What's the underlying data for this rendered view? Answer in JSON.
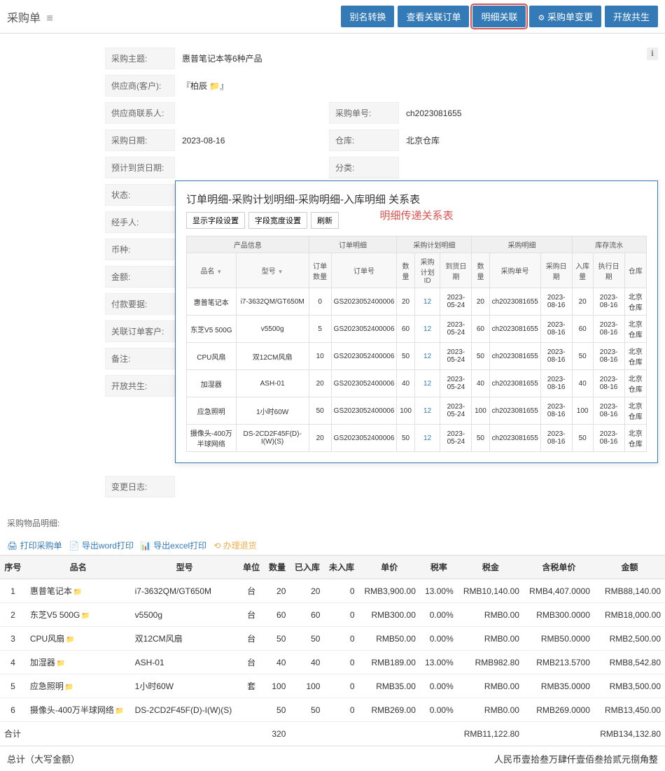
{
  "header": {
    "title": "采购单",
    "buttons": [
      "别名转换",
      "查看关联订单",
      "明细关联",
      "采购单变更",
      "开放共生"
    ],
    "highlighted_index": 2
  },
  "form": {
    "subject_label": "采购主题:",
    "subject_value": "惠普笔记本等6种产品",
    "supplier_label": "供应商(客户):",
    "supplier_value": "『柏辰 📁』",
    "contact_label": "供应商联系人:",
    "po_no_label": "采购单号:",
    "po_no_value": "ch2023081655",
    "date_label": "采购日期:",
    "date_value": "2023-08-16",
    "warehouse_label": "仓库:",
    "warehouse_value": "北京仓库",
    "expect_label": "预计到货日期:",
    "category_label": "分类:",
    "status_label": "状态:",
    "handler_label": "经手人:",
    "currency_label": "币种:",
    "amount_label": "金额:",
    "payreq_label": "付款要据:",
    "relcust_label": "关联订单客户:",
    "remark_label": "备注:",
    "open_label": "开放共生:",
    "changelog_label": "变更日志:"
  },
  "overlay": {
    "title": "订单明细-采购计划明细-采购明细-入库明细 关系表",
    "red_title": "明细传递关系表",
    "btns": [
      "显示字段设置",
      "字段宽度设置",
      "刷新"
    ],
    "group_headers": [
      "产品信息",
      "订单明细",
      "采购计划明细",
      "采购明细",
      "库存流水"
    ],
    "cols": [
      "品名",
      "型号",
      "订单数量",
      "订单号",
      "数量",
      "采购计划ID",
      "到货日期",
      "数量",
      "采购单号",
      "采购日期",
      "入库量",
      "执行日期",
      "仓库"
    ],
    "rows": [
      [
        "惠普笔记本",
        "i7-3632QM/GT650M",
        "0",
        "GS2023052400006",
        "20",
        "12",
        "2023-05-24",
        "20",
        "ch2023081655",
        "2023-08-16",
        "20",
        "2023-08-16",
        "北京仓库"
      ],
      [
        "东芝V5 500G",
        "v5500g",
        "5",
        "GS2023052400006",
        "60",
        "12",
        "2023-05-24",
        "60",
        "ch2023081655",
        "2023-08-16",
        "60",
        "2023-08-16",
        "北京仓库"
      ],
      [
        "CPU风扇",
        "双12CM风扇",
        "10",
        "GS2023052400006",
        "50",
        "12",
        "2023-05-24",
        "50",
        "ch2023081655",
        "2023-08-16",
        "50",
        "2023-08-16",
        "北京仓库"
      ],
      [
        "加湿器",
        "ASH-01",
        "20",
        "GS2023052400006",
        "40",
        "12",
        "2023-05-24",
        "40",
        "ch2023081655",
        "2023-08-16",
        "40",
        "2023-08-16",
        "北京仓库"
      ],
      [
        "应急照明",
        "1小时60W",
        "50",
        "GS2023052400006",
        "100",
        "12",
        "2023-05-24",
        "100",
        "ch2023081655",
        "2023-08-16",
        "100",
        "2023-08-16",
        "北京仓库"
      ],
      [
        "摄像头-400万半球网络",
        "DS-2CD2F45F(D)-I(W)(S)",
        "20",
        "GS2023052400006",
        "50",
        "12",
        "2023-05-24",
        "50",
        "ch2023081655",
        "2023-08-16",
        "50",
        "2023-08-16",
        "北京仓库"
      ]
    ]
  },
  "items_label": "采购物品明细:",
  "toolbar": {
    "print": "打印采购单",
    "word": "导出word打印",
    "excel": "导出excel打印",
    "refund": "办理退货"
  },
  "table": {
    "headers": [
      "序号",
      "品名",
      "型号",
      "单位",
      "数量",
      "已入库",
      "未入库",
      "单价",
      "税率",
      "税金",
      "含税单价",
      "金额"
    ],
    "rows": [
      [
        "1",
        "惠普笔记本",
        "i7-3632QM/GT650M",
        "台",
        "20",
        "20",
        "0",
        "RMB3,900.00",
        "13.00%",
        "RMB10,140.00",
        "RMB4,407.0000",
        "RMB88,140.00"
      ],
      [
        "2",
        "东芝V5 500G",
        "v5500g",
        "台",
        "60",
        "60",
        "0",
        "RMB300.00",
        "0.00%",
        "RMB0.00",
        "RMB300.0000",
        "RMB18,000.00"
      ],
      [
        "3",
        "CPU风扇",
        "双12CM风扇",
        "台",
        "50",
        "50",
        "0",
        "RMB50.00",
        "0.00%",
        "RMB0.00",
        "RMB50.0000",
        "RMB2,500.00"
      ],
      [
        "4",
        "加湿器",
        "ASH-01",
        "台",
        "40",
        "40",
        "0",
        "RMB189.00",
        "13.00%",
        "RMB982.80",
        "RMB213.5700",
        "RMB8,542.80"
      ],
      [
        "5",
        "应急照明",
        "1小时60W",
        "套",
        "100",
        "100",
        "0",
        "RMB35.00",
        "0.00%",
        "RMB0.00",
        "RMB35.0000",
        "RMB3,500.00"
      ],
      [
        "6",
        "摄像头-400万半球网络",
        "DS-2CD2F45F(D)-I(W)(S)",
        "",
        "50",
        "50",
        "0",
        "RMB269.00",
        "0.00%",
        "RMB0.00",
        "RMB269.0000",
        "RMB13,450.00"
      ]
    ],
    "total_label": "合计",
    "total_qty": "320",
    "total_tax": "RMB11,122.80",
    "total_amount": "RMB134,132.80"
  },
  "footer": {
    "label": "总计（大写金额）",
    "text": "人民币壹拾叁万肆仟壹佰叁拾贰元捌角整"
  }
}
